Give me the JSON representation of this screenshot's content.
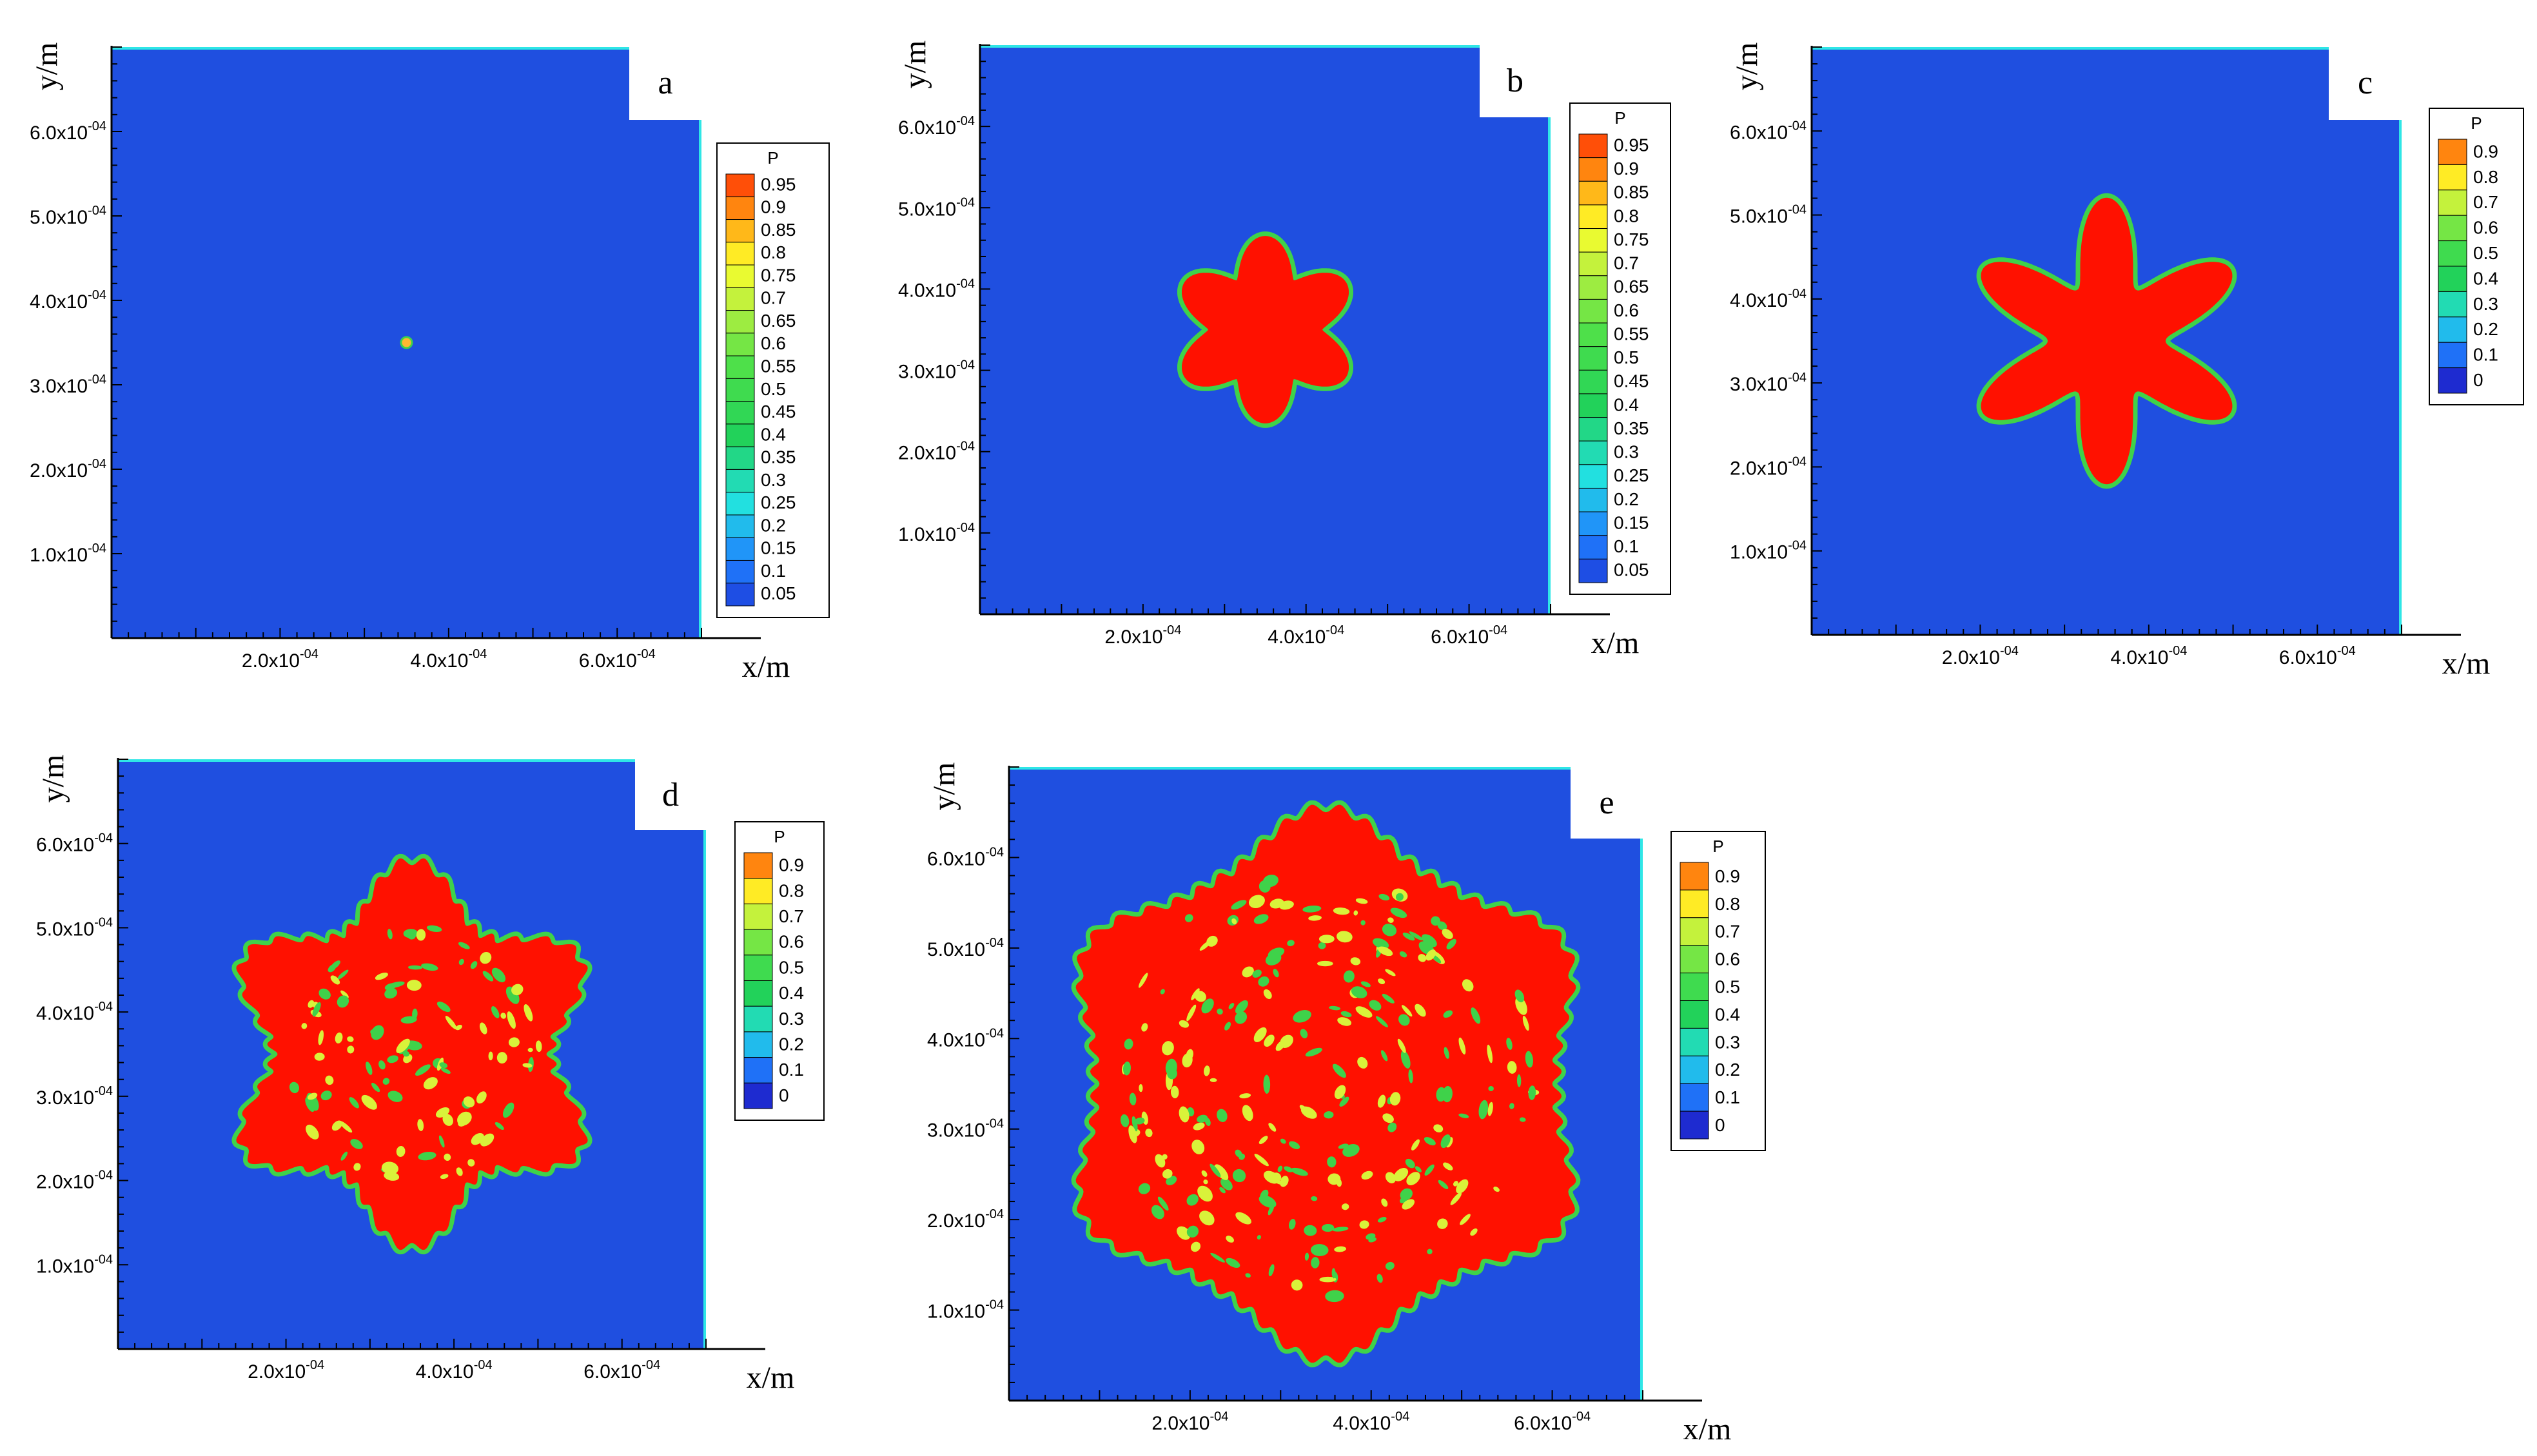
{
  "figure": {
    "panel_labels": [
      "a",
      "b",
      "c",
      "d",
      "e"
    ],
    "xlabel": "x/m",
    "ylabel": "y/m"
  },
  "colors": {
    "field_blue": "#1f4fe0",
    "interface_green": "#3fd24a",
    "interface_cyan": "#2fe6e6",
    "solid_red": "#ff1100"
  },
  "chart_data": [
    {
      "type": "heatmap",
      "panel": "a",
      "xlabel": "x/m",
      "ylabel": "y/m",
      "xticks": [
        "2.0x10^-04",
        "4.0x10^-04",
        "6.0x10^-04"
      ],
      "yticks": [
        "1.0x10^-04",
        "2.0x10^-04",
        "3.0x10^-04",
        "4.0x10^-04",
        "5.0x10^-04",
        "6.0x10^-04"
      ],
      "xlim": [
        0,
        0.0007
      ],
      "ylim": [
        0,
        0.0007
      ],
      "legend_title": "P",
      "legend_levels": [
        "0.95",
        "0.9",
        "0.85",
        "0.8",
        "0.75",
        "0.7",
        "0.65",
        "0.6",
        "0.55",
        "0.5",
        "0.45",
        "0.4",
        "0.35",
        "0.3",
        "0.25",
        "0.2",
        "0.15",
        "0.1",
        "0.05"
      ],
      "crystal": {
        "center": [
          0.00035,
          0.00035
        ],
        "outer_radius": 4e-06,
        "inner_radius": 4e-06,
        "arms": 6,
        "shape": "seed",
        "porous": false
      }
    },
    {
      "type": "heatmap",
      "panel": "b",
      "xlabel": "x/m",
      "ylabel": "y/m",
      "xticks": [
        "2.0x10^-04",
        "4.0x10^-04",
        "6.0x10^-04"
      ],
      "yticks": [
        "1.0x10^-04",
        "2.0x10^-04",
        "3.0x10^-04",
        "4.0x10^-04",
        "5.0x10^-04",
        "6.0x10^-04"
      ],
      "xlim": [
        0,
        0.0007
      ],
      "ylim": [
        0,
        0.0007
      ],
      "legend_title": "P",
      "legend_levels": [
        "0.95",
        "0.9",
        "0.85",
        "0.8",
        "0.75",
        "0.7",
        "0.65",
        "0.6",
        "0.55",
        "0.5",
        "0.45",
        "0.4",
        "0.35",
        "0.3",
        "0.25",
        "0.2",
        "0.15",
        "0.1",
        "0.05"
      ],
      "crystal": {
        "center": [
          0.00035,
          0.00035
        ],
        "outer_radius": 0.000115,
        "inner_radius": 7e-05,
        "arms": 6,
        "shape": "six-lobed",
        "porous": false
      }
    },
    {
      "type": "heatmap",
      "panel": "c",
      "xlabel": "x/m",
      "ylabel": "y/m",
      "xticks": [
        "2.0x10^-04",
        "4.0x10^-04",
        "6.0x10^-04"
      ],
      "yticks": [
        "1.0x10^-04",
        "2.0x10^-04",
        "3.0x10^-04",
        "4.0x10^-04",
        "5.0x10^-04",
        "6.0x10^-04"
      ],
      "xlim": [
        0,
        0.0007
      ],
      "ylim": [
        0,
        0.0007
      ],
      "legend_title": "P",
      "legend_levels": [
        "0.9",
        "0.8",
        "0.7",
        "0.6",
        "0.5",
        "0.4",
        "0.3",
        "0.2",
        "0.1",
        "0"
      ],
      "crystal": {
        "center": [
          0.00035,
          0.00035
        ],
        "outer_radius": 0.00017,
        "inner_radius": 7e-05,
        "arms": 6,
        "shape": "six-armed star",
        "porous": false
      }
    },
    {
      "type": "heatmap",
      "panel": "d",
      "xlabel": "x/m",
      "ylabel": "y/m",
      "xticks": [
        "2.0x10^-04",
        "4.0x10^-04",
        "6.0x10^-04"
      ],
      "yticks": [
        "1.0x10^-04",
        "2.0x10^-04",
        "3.0x10^-04",
        "4.0x10^-04",
        "5.0x10^-04",
        "6.0x10^-04"
      ],
      "xlim": [
        0,
        0.0007
      ],
      "ylim": [
        0,
        0.0007
      ],
      "legend_title": "P",
      "legend_levels": [
        "0.9",
        "0.8",
        "0.7",
        "0.6",
        "0.5",
        "0.4",
        "0.3",
        "0.2",
        "0.1",
        "0"
      ],
      "crystal": {
        "center": [
          0.00035,
          0.00035
        ],
        "outer_radius": 0.000225,
        "inner_radius": 0.00016,
        "arms": 6,
        "shape": "dendritic star",
        "porous": true
      }
    },
    {
      "type": "heatmap",
      "panel": "e",
      "xlabel": "x/m",
      "ylabel": "y/m",
      "xticks": [
        "2.0x10^-04",
        "4.0x10^-04",
        "6.0x10^-04"
      ],
      "yticks": [
        "1.0x10^-04",
        "2.0x10^-04",
        "3.0x10^-04",
        "4.0x10^-04",
        "5.0x10^-04",
        "6.0x10^-04"
      ],
      "xlim": [
        0,
        0.0007
      ],
      "ylim": [
        0,
        0.0007
      ],
      "legend_title": "P",
      "legend_levels": [
        "0.9",
        "0.8",
        "0.7",
        "0.6",
        "0.5",
        "0.4",
        "0.3",
        "0.2",
        "0.1",
        "0"
      ],
      "crystal": {
        "center": [
          0.00035,
          0.00035
        ],
        "outer_radius": 0.0003,
        "inner_radius": 0.00025,
        "arms": 6,
        "shape": "hexagonal dendrite",
        "porous": true
      }
    }
  ]
}
